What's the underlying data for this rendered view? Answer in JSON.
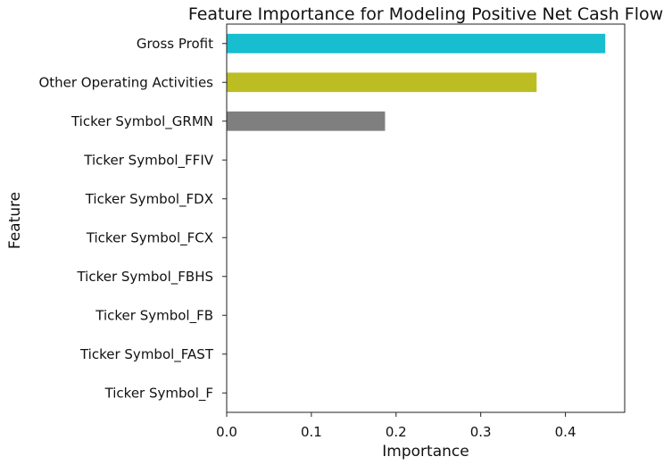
{
  "chart_data": {
    "type": "bar",
    "orientation": "horizontal",
    "title": "Feature Importance for Modeling Positive Net Cash Flow",
    "xlabel": "Importance",
    "ylabel": "Feature",
    "categories": [
      "Gross Profit",
      "Other Operating Activities",
      "Ticker Symbol_GRMN",
      "Ticker Symbol_FFIV",
      "Ticker Symbol_FDX",
      "Ticker Symbol_FCX",
      "Ticker Symbol_FBHS",
      "Ticker Symbol_FB",
      "Ticker Symbol_FAST",
      "Ticker Symbol_F"
    ],
    "values": [
      0.447,
      0.366,
      0.187,
      0,
      0,
      0,
      0,
      0,
      0,
      0
    ],
    "colors": [
      "#17becf",
      "#bcbd22",
      "#7f7f7f",
      "#c7c7c7",
      "#ffbb78",
      "#9467bd",
      "#8c564b",
      "#e377c2",
      "#2ca02c",
      "#d62728"
    ],
    "xlim": [
      0,
      0.47
    ],
    "xticks": [
      0.0,
      0.1,
      0.2,
      0.3,
      0.4
    ],
    "xtick_labels": [
      "0.0",
      "0.1",
      "0.2",
      "0.3",
      "0.4"
    ],
    "grid": false,
    "legend": "none"
  }
}
